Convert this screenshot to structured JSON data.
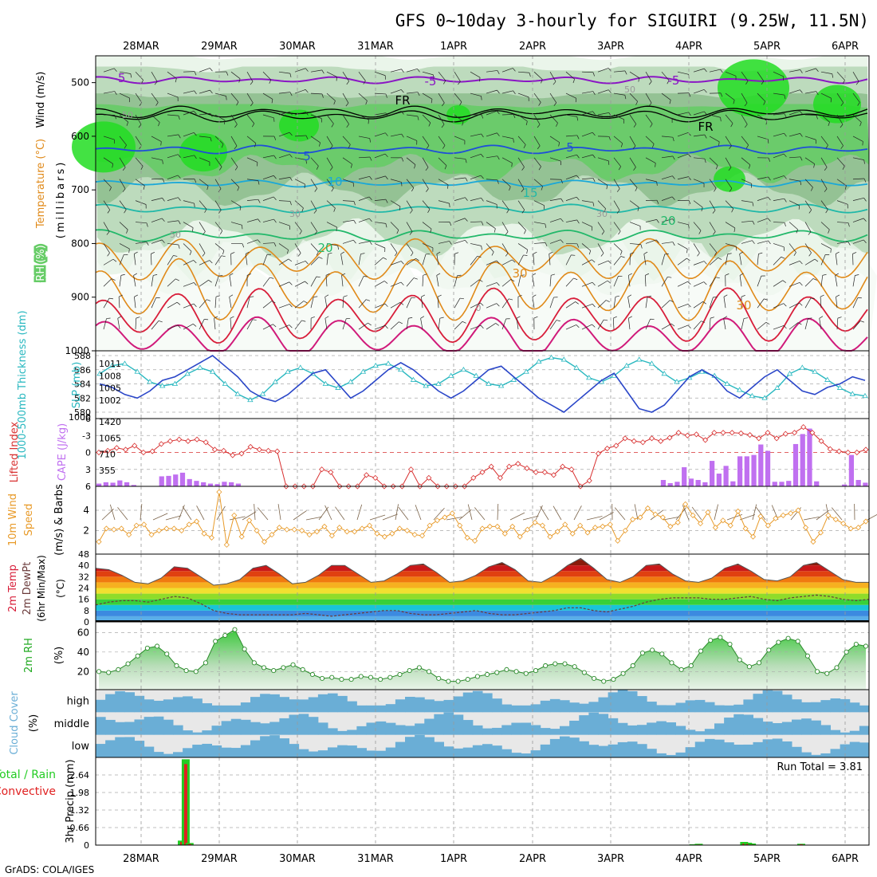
{
  "title": "GFS 0~10day 3-hourly for SIGUIRI (9.25W, 11.5N)",
  "footer": "GrADS: COLA/IGES",
  "colors": {
    "rh_light": "#e8f4e8",
    "rh_mid": "#b8d8b8",
    "rh_dark": "#8fbf8f",
    "rh_green": "#66cc66",
    "rh_bright": "#22dd22",
    "temp_purple": "#8a16c4",
    "temp_blue": "#1e4fd8",
    "temp_cyan": "#1aa8d8",
    "temp_teal": "#1fb8a8",
    "temp_green": "#22b86a",
    "temp_orange": "#e08a1a",
    "temp_red": "#d81e3a",
    "temp_magenta": "#d01a7a",
    "thickness": "#2a46c8",
    "slp": "#29b8c0",
    "lifted": "#d83030",
    "cape": "#c070f0",
    "wind10m": "#e89a28",
    "rh2m_line": "#2a8a2a",
    "cloud": "#6aaed6",
    "cloud_bg": "#e8e8e8",
    "precip_total": "#22cc22",
    "precip_conv": "#e02020"
  },
  "chart_data": [
    {
      "id": "upper-air",
      "type": "heatmap",
      "title": "RH (%) / Temperature (°C) / Wind (m/s)",
      "ylabel_parts": [
        "RH (%)",
        "Temperature (°C)",
        "Wind (m/s)"
      ],
      "ylabel2": "(millibars)",
      "x_ticks": [
        "28MAR",
        "29MAR",
        "30MAR",
        "31MAR",
        "1APR",
        "2APR",
        "3APR",
        "4APR",
        "5APR",
        "6APR"
      ],
      "y_ticks": [
        "500",
        "600",
        "700",
        "800",
        "900",
        "1000"
      ],
      "ylim": [
        1000,
        450
      ],
      "contour_labels": [
        "-5",
        "-5",
        "-5",
        "FR",
        "FR",
        "5",
        "5",
        "10",
        "15",
        "20",
        "20",
        "30",
        "30",
        "50",
        "50",
        "50",
        "30",
        "30",
        "0"
      ]
    },
    {
      "id": "thickness-slp",
      "type": "line",
      "ylabel_left": "1000-500mb Thickness (dm)",
      "ylabel_right": "SLP (mb)",
      "y_ticks_left": [
        "588",
        "586",
        "584",
        "582",
        "580"
      ],
      "y_ticks_right": [
        "1011",
        "1008",
        "1005",
        "1002"
      ],
      "series": [
        {
          "name": "thickness",
          "values": [
            584.0,
            583.5,
            582.5,
            582.0,
            583.0,
            584.5,
            585.0,
            586.0,
            587.0,
            588.0,
            586.5,
            585.0,
            583.0,
            582.0,
            581.5,
            582.5,
            584.0,
            585.5,
            586.0,
            584.0,
            582.0,
            583.0,
            584.5,
            586.0,
            587.0,
            586.0,
            584.5,
            583.0,
            582.0,
            583.0,
            584.5,
            586.0,
            586.5,
            585.0,
            583.5,
            582.0,
            581.0,
            580.0,
            581.5,
            583.0,
            584.5,
            585.5,
            583.0,
            580.5,
            580.0,
            581.0,
            583.0,
            585.0,
            586.0,
            585.0,
            583.0,
            582.0,
            583.5,
            585.0,
            586.0,
            584.5,
            583.0,
            582.5,
            583.5,
            584.0,
            585.0,
            584.5
          ]
        },
        {
          "name": "slp",
          "values": [
            1008.5,
            1010.5,
            1011.0,
            1009.0,
            1006.5,
            1005.5,
            1006.0,
            1008.5,
            1010.0,
            1009.0,
            1006.0,
            1003.5,
            1002.0,
            1003.5,
            1006.5,
            1009.0,
            1010.0,
            1008.5,
            1006.0,
            1005.0,
            1006.5,
            1009.0,
            1010.5,
            1011.0,
            1009.5,
            1007.0,
            1005.5,
            1006.0,
            1008.0,
            1009.5,
            1008.0,
            1006.0,
            1005.5,
            1007.0,
            1009.0,
            1011.5,
            1012.5,
            1012.0,
            1010.0,
            1007.5,
            1006.5,
            1008.0,
            1010.5,
            1012.0,
            1011.0,
            1008.5,
            1006.5,
            1007.5,
            1009.0,
            1008.0,
            1006.0,
            1004.5,
            1003.0,
            1002.5,
            1005.0,
            1008.5,
            1010.0,
            1009.0,
            1007.0,
            1005.0,
            1003.5,
            1003.0
          ]
        }
      ]
    },
    {
      "id": "lifted-cape",
      "type": "bar",
      "ylabel_left": "Lifted Index",
      "ylabel_right": "CAPE (J/kg)",
      "y_ticks_left": [
        "-6",
        "-3",
        "0",
        "3",
        "6"
      ],
      "y_ticks_right": [
        "1420",
        "1065",
        "710",
        "355"
      ],
      "series": [
        {
          "name": "cape",
          "values": [
            60,
            90,
            80,
            130,
            90,
            30,
            5,
            0,
            5,
            220,
            230,
            260,
            300,
            160,
            120,
            90,
            60,
            50,
            100,
            90,
            60,
            0,
            0,
            0,
            0,
            0,
            0,
            0,
            0,
            0,
            0,
            0,
            0,
            0,
            0,
            0,
            0,
            0,
            0,
            0,
            0,
            0,
            0,
            0,
            0,
            0,
            0,
            0,
            0,
            0,
            0,
            0,
            0,
            0,
            0,
            0,
            0,
            0,
            0,
            0,
            0,
            0,
            0,
            0,
            0,
            0,
            0,
            0,
            0,
            0,
            0,
            0,
            0,
            0,
            0,
            0,
            0,
            0,
            0,
            0,
            0,
            140,
            70,
            100,
            420,
            170,
            140,
            90,
            560,
            280,
            450,
            110,
            660,
            660,
            690,
            920,
            780,
            100,
            100,
            120,
            930,
            1150,
            1270,
            110,
            0,
            0,
            0,
            40,
            690,
            140,
            80
          ]
        },
        {
          "name": "lifted",
          "values": [
            0,
            -0.3,
            -0.8,
            -0.5,
            -1.2,
            0,
            -0.2,
            -1.5,
            -2.0,
            -2.3,
            -2.0,
            -2.3,
            -1.8,
            -0.5,
            -0.3,
            0.5,
            0.2,
            -1.0,
            -0.5,
            -0.3,
            -0.2,
            6,
            6,
            6,
            6,
            3,
            3.5,
            6,
            6,
            6,
            4,
            4.5,
            6,
            6,
            6,
            3,
            6,
            4.5,
            6,
            6,
            6,
            6,
            4.5,
            3.5,
            2.5,
            4.5,
            2.5,
            2.0,
            2.8,
            3.5,
            3.5,
            4.0,
            2.5,
            3.0,
            6,
            5.0,
            0.2,
            -0.7,
            -1.2,
            -2.5,
            -2.0,
            -1.8,
            -2.5,
            -2.0,
            -2.6,
            -3.5,
            -3.0,
            -3.2,
            -2.2,
            -3.5,
            -3.5,
            -3.5,
            -3.4,
            -3.1,
            -2.5,
            -3.5,
            -2.5,
            -3.3,
            -3.5,
            -4.5,
            -3.5,
            -2.0,
            -0.6,
            -0.2,
            0,
            0,
            -0.5
          ]
        }
      ]
    },
    {
      "id": "wind10m",
      "type": "line",
      "ylabel": "10m Wind Speed (m/s) & Barbs",
      "y_ticks": [
        "4",
        "2"
      ],
      "series": [
        {
          "name": "wind10m",
          "values": [
            0.9,
            2.2,
            2.1,
            2.2,
            1.6,
            2.5,
            2.6,
            1.6,
            2.0,
            2.2,
            2.2,
            2.0,
            2.6,
            2.9,
            1.7,
            1.3,
            5.8,
            0.6,
            3.5,
            1.4,
            3.0,
            2.0,
            0.9,
            1.6,
            2.3,
            2.1,
            2.1,
            2.0,
            1.6,
            1.9,
            2.4,
            1.5,
            2.3,
            1.9,
            1.9,
            2.2,
            2.5,
            1.7,
            1.4,
            1.7,
            2.2,
            2.0,
            1.6,
            1.5,
            2.5,
            3.0,
            3.3,
            3.7,
            2.5,
            1.3,
            1.0,
            2.2,
            2.4,
            2.4,
            1.7,
            2.4,
            1.4,
            2.1,
            2.8,
            2.5,
            1.4,
            1.9,
            2.6,
            1.7,
            2.5,
            1.8,
            2.3,
            2.4,
            2.6,
            1.0,
            2.0,
            3.1,
            3.3,
            4.2,
            3.6,
            3.3,
            2.4,
            2.8,
            4.6,
            3.5,
            2.7,
            3.8,
            2.3,
            3.0,
            2.5,
            3.9,
            2.2,
            1.4,
            3.4,
            2.5,
            3.2,
            3.5,
            3.7,
            4.0,
            2.3,
            0.9,
            1.8,
            3.5,
            3.1,
            2.7,
            2.2,
            2.3,
            2.9
          ]
        }
      ]
    },
    {
      "id": "temp2m",
      "type": "area",
      "ylabel": "2m Temp / 2m DewPt (6hr Min/Max) (°C)",
      "y_ticks": [
        "48",
        "40",
        "32",
        "24",
        "16",
        "8",
        "0"
      ],
      "series": [
        {
          "name": "temp",
          "values": [
            38,
            37,
            33,
            28,
            27,
            31,
            39,
            38,
            32,
            26,
            27,
            30,
            38,
            40,
            34,
            27,
            28,
            33,
            40,
            40,
            34,
            28,
            29,
            34,
            40,
            41,
            35,
            28,
            29,
            33,
            39,
            42,
            37,
            29,
            28,
            33,
            40,
            45,
            38,
            30,
            28,
            32,
            40,
            41,
            34,
            29,
            28,
            31,
            38,
            41,
            36,
            30,
            29,
            32,
            40,
            42,
            36,
            30,
            28,
            28
          ]
        },
        {
          "name": "dewpoint",
          "values": [
            12,
            14,
            15,
            15,
            14,
            16,
            18,
            17,
            13,
            8,
            6,
            5,
            5,
            5,
            5,
            5,
            6,
            5,
            4,
            5,
            6,
            7,
            8,
            8,
            6,
            5,
            5,
            6,
            7,
            8,
            6,
            5,
            5,
            6,
            7,
            8,
            10,
            10,
            8,
            7,
            9,
            11,
            14,
            16,
            17,
            17,
            17,
            16,
            16,
            17,
            18,
            16,
            15,
            17,
            18,
            19,
            18,
            16,
            15,
            16
          ]
        }
      ]
    },
    {
      "id": "rh2m",
      "type": "area",
      "ylabel": "2m RH (%)",
      "y_ticks": [
        "60",
        "40",
        "20"
      ],
      "series": [
        {
          "name": "rh2m",
          "values": [
            20,
            19,
            22,
            28,
            36,
            44,
            46,
            38,
            26,
            21,
            20,
            29,
            51,
            57,
            63,
            43,
            29,
            24,
            21,
            24,
            27,
            22,
            17,
            13,
            14,
            12,
            12,
            15,
            14,
            12,
            14,
            17,
            21,
            24,
            20,
            13,
            10,
            10,
            12,
            15,
            17,
            19,
            22,
            20,
            18,
            21,
            26,
            28,
            28,
            25,
            19,
            13,
            10,
            12,
            18,
            26,
            39,
            42,
            38,
            29,
            22,
            26,
            41,
            52,
            55,
            48,
            32,
            25,
            29,
            42,
            50,
            54,
            51,
            36,
            20,
            18,
            24,
            40,
            48,
            46
          ]
        }
      ]
    },
    {
      "id": "cloud",
      "type": "heatmap",
      "ylabel": "Cloud Cover (%)",
      "rows": [
        "high",
        "middle",
        "low"
      ]
    },
    {
      "id": "precip",
      "type": "bar",
      "ylabel_left": "Total / Rain",
      "ylabel_left2": "Convective",
      "ylabel": "3hr Precip (mm)",
      "annotation": "Run Total = 3.81",
      "y_ticks": [
        "2.64",
        "1.98",
        "1.32",
        "0.66",
        "0"
      ],
      "ylim": [
        0,
        3.3
      ],
      "x_ticks": [
        "28MAR",
        "29MAR",
        "30MAR",
        "31MAR",
        "1APR",
        "2APR",
        "3APR",
        "4APR",
        "5APR",
        "6APR"
      ],
      "bars": [
        {
          "x": 28.52,
          "total": 0.17,
          "conv": 0.12
        },
        {
          "x": 28.57,
          "total": 3.23,
          "conv": 3.05
        },
        {
          "x": 28.62,
          "total": 0.08,
          "conv": 0.04
        },
        {
          "x": 35.06,
          "total": 0.03,
          "conv": 0.01
        },
        {
          "x": 35.13,
          "total": 0.05,
          "conv": 0.02
        },
        {
          "x": 35.71,
          "total": 0.12,
          "conv": 0.06
        },
        {
          "x": 35.76,
          "total": 0.09,
          "conv": 0.05
        },
        {
          "x": 35.81,
          "total": 0.06,
          "conv": 0.02
        },
        {
          "x": 36.44,
          "total": 0.05,
          "conv": 0.03
        }
      ]
    }
  ]
}
